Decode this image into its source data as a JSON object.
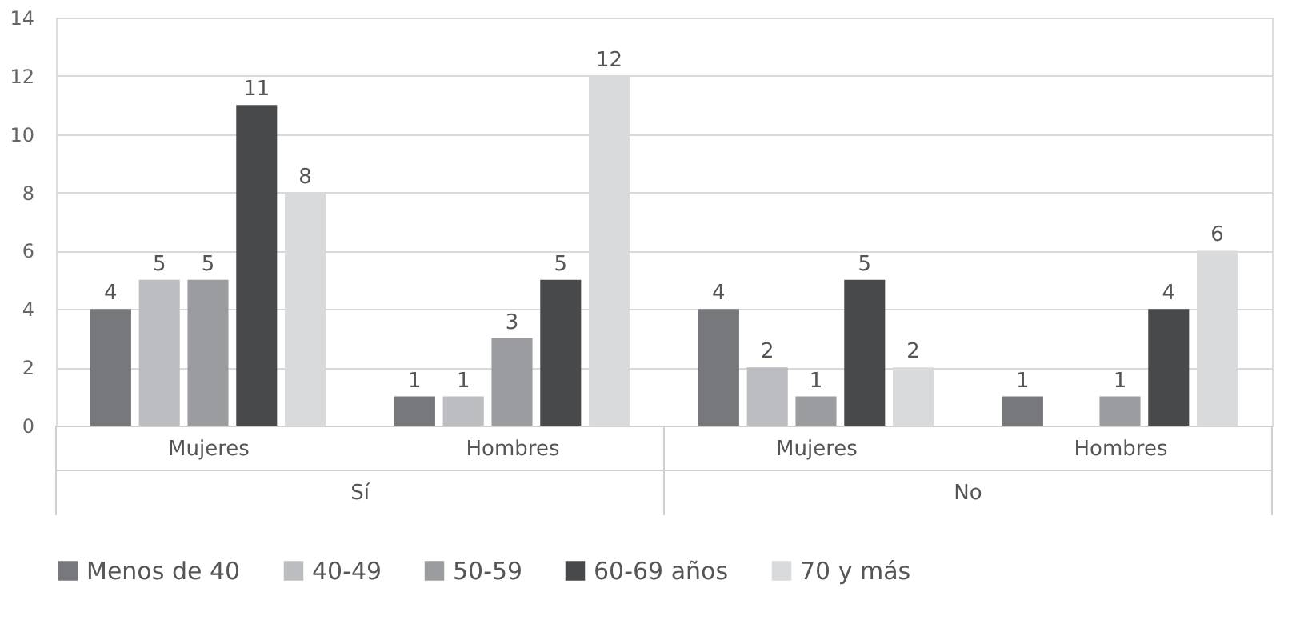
{
  "chart_data": {
    "type": "bar",
    "categories": [
      "Mujeres",
      "Hombres",
      "Mujeres",
      "Hombres"
    ],
    "annotations": [
      "Sí",
      "No"
    ],
    "series": [
      {
        "name": "Menos de 40",
        "color": "#77787b",
        "values": [
          4,
          1,
          4,
          1
        ]
      },
      {
        "name": "40-49",
        "color": "#bcbdc0",
        "values": [
          5,
          1,
          2,
          null
        ]
      },
      {
        "name": "50-59",
        "color": "#9b9c9f",
        "values": [
          5,
          3,
          1,
          1
        ]
      },
      {
        "name": "60-69 años",
        "color": "#48494b",
        "values": [
          11,
          5,
          5,
          4
        ]
      },
      {
        "name": "70 y más",
        "color": "#d9dadb",
        "values": [
          8,
          12,
          2,
          6
        ]
      }
    ],
    "ylim": [
      0,
      14
    ],
    "yticks": [
      0,
      2,
      4,
      6,
      8,
      10,
      12,
      14
    ],
    "grid": "y",
    "legend": "bottom",
    "data_labels": true
  }
}
